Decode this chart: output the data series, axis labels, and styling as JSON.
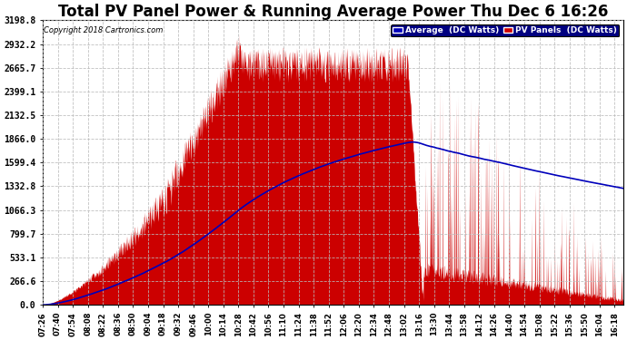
{
  "title": "Total PV Panel Power & Running Average Power Thu Dec 6 16:26",
  "copyright": "Copyright 2018 Cartronics.com",
  "legend_avg": "Average  (DC Watts)",
  "legend_pv": "PV Panels  (DC Watts)",
  "yticks": [
    0.0,
    266.6,
    533.1,
    799.7,
    1066.3,
    1332.8,
    1599.4,
    1866.0,
    2132.5,
    2399.1,
    2665.7,
    2932.2,
    3198.8
  ],
  "ymax": 3198.8,
  "bg_color": "#ffffff",
  "plot_bg_color": "#ffffff",
  "grid_color": "#bbbbbb",
  "pv_color": "#cc0000",
  "avg_color": "#0000bb",
  "title_fontsize": 12,
  "xtick_labels": [
    "07:26",
    "07:40",
    "07:54",
    "08:08",
    "08:22",
    "08:36",
    "08:50",
    "09:04",
    "09:18",
    "09:32",
    "09:46",
    "10:00",
    "10:14",
    "10:28",
    "10:42",
    "10:56",
    "11:10",
    "11:24",
    "11:38",
    "11:52",
    "12:06",
    "12:20",
    "12:34",
    "12:48",
    "13:02",
    "13:16",
    "13:30",
    "13:44",
    "13:58",
    "14:12",
    "14:26",
    "14:40",
    "14:54",
    "15:08",
    "15:22",
    "15:36",
    "15:50",
    "16:04",
    "16:18"
  ]
}
